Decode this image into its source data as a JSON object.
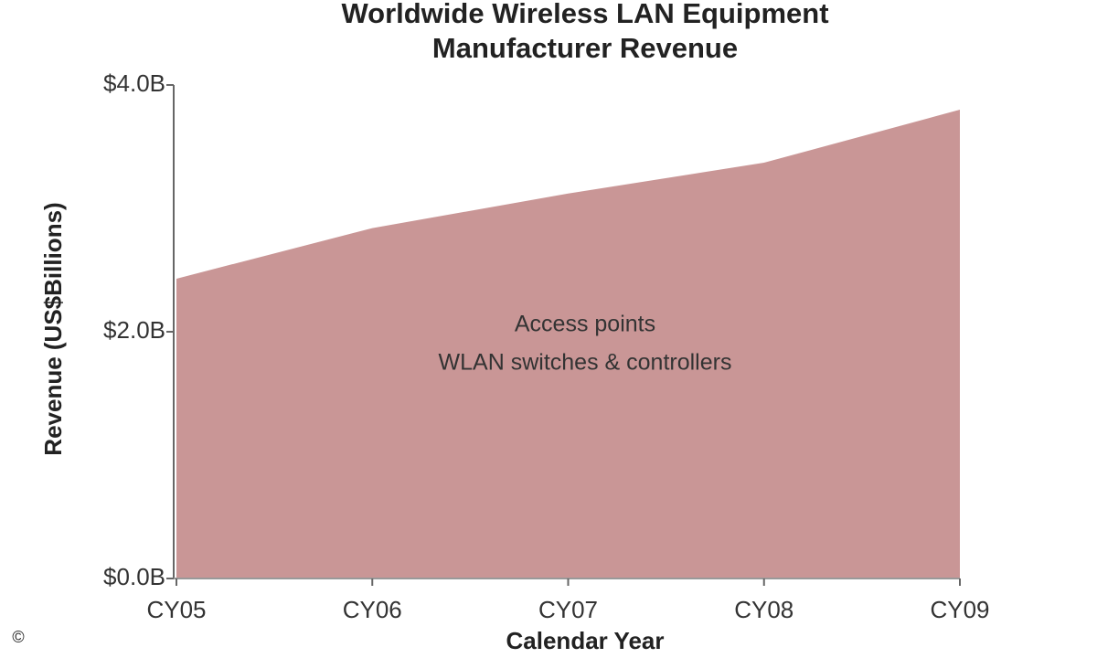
{
  "chart_data": {
    "type": "area",
    "title": [
      "Worldwide Wireless LAN Equipment",
      "Manufacturer Revenue"
    ],
    "x_label": "Calendar Year",
    "y_label": "Revenue (US$Billions)",
    "categories": [
      "CY05",
      "CY06",
      "CY07",
      "CY08",
      "CY09"
    ],
    "values": [
      2.43,
      2.84,
      3.12,
      3.37,
      3.8
    ],
    "color": "#c99696",
    "ylim": [
      0,
      4
    ],
    "yticks": [
      {
        "value": 0,
        "label": "$0.0B"
      },
      {
        "value": 2,
        "label": "$2.0B"
      },
      {
        "value": 4,
        "label": "$4.0B"
      }
    ],
    "annotations": [
      "Access points",
      "WLAN switches & controllers"
    ],
    "copyright": "©"
  }
}
